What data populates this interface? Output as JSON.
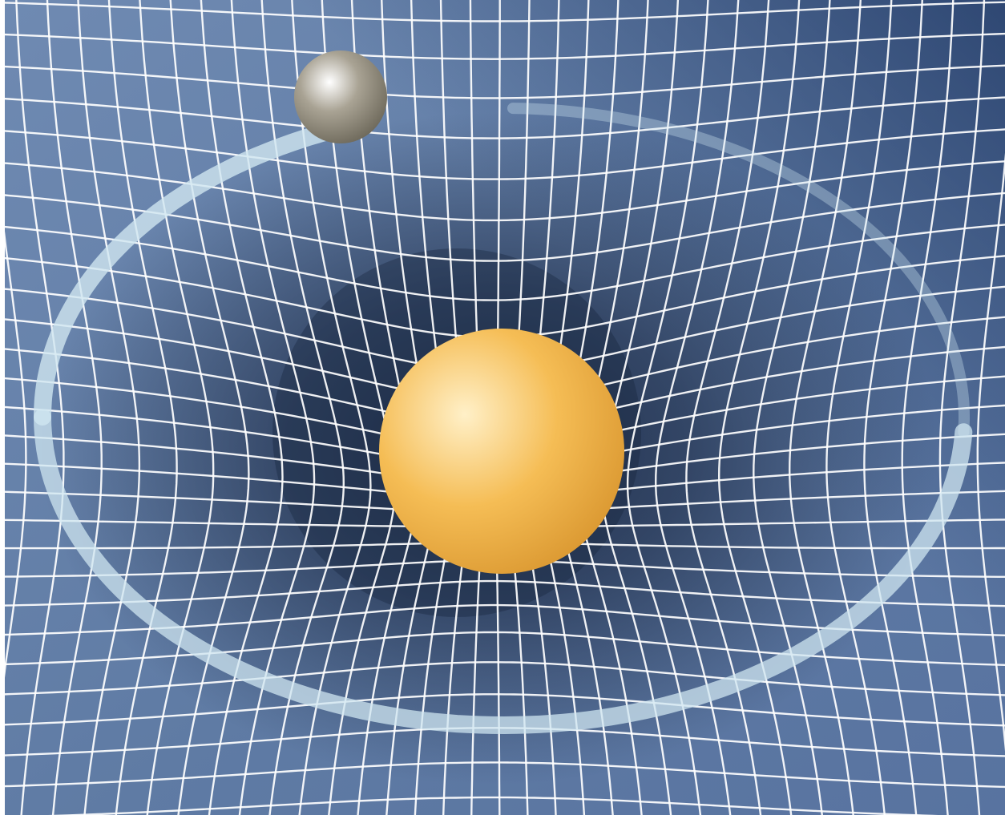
{
  "illustration": {
    "subject": "",
    "colors": {
      "fabric_base": "#5e7aa3",
      "fabric_well": "#1c2a45",
      "grid_line": "#ffffff",
      "orbit_path": "#cfe6f0",
      "central_mass": "#f5bd55",
      "central_mass_highlight": "#fff0c8",
      "orbiting_body": "#a9a394",
      "orbiting_body_highlight": "#ffffff"
    },
    "elements": [
      "spacetime-grid",
      "gravity-well",
      "central-mass-sphere",
      "orbiting-body-sphere",
      "orbit-path"
    ]
  }
}
